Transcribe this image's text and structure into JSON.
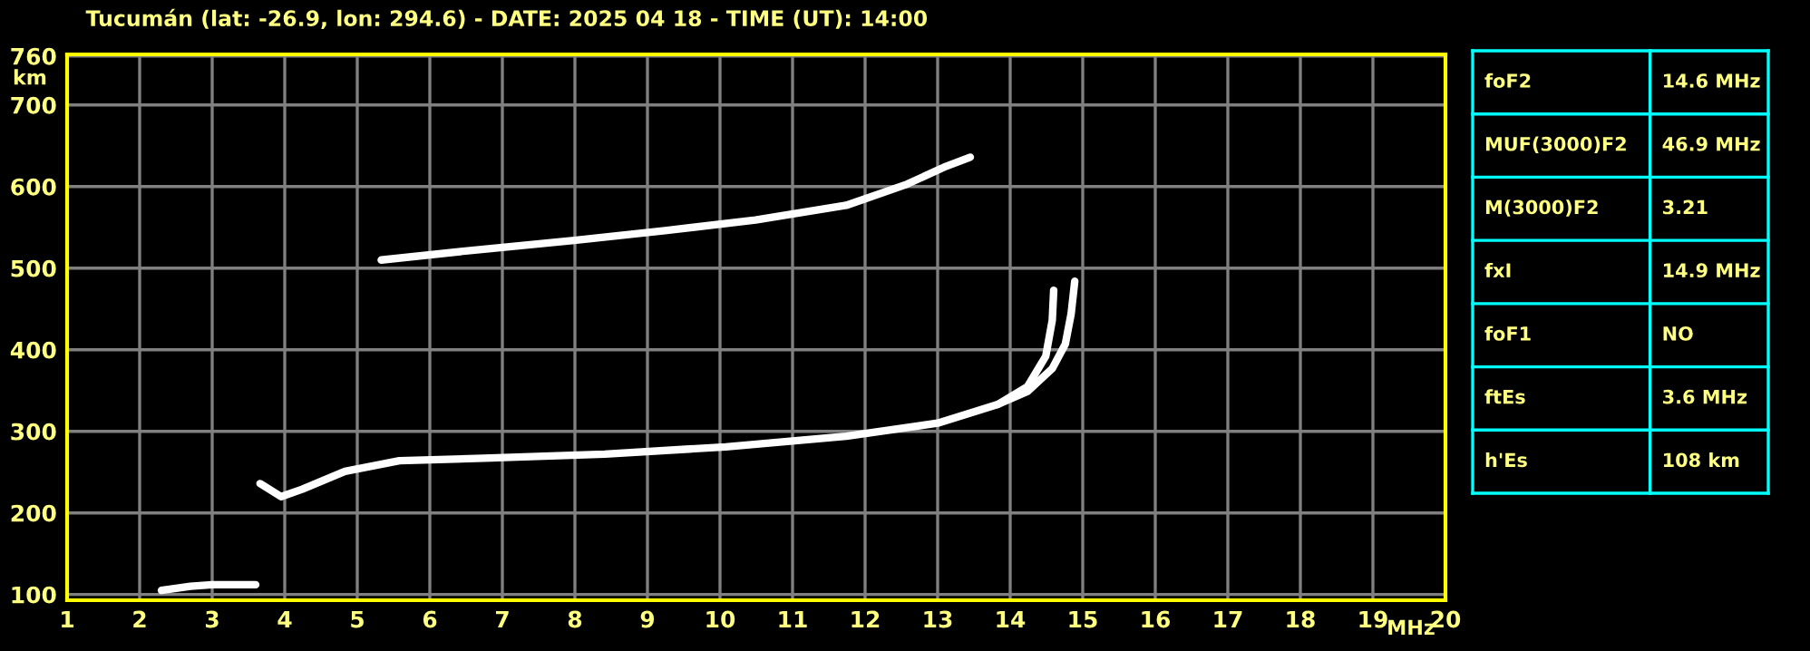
{
  "chart_data": {
    "type": "line",
    "title": "Tucumán (lat: -26.9, lon: 294.6) - DATE: 2025 04 18 - TIME (UT): 14:00",
    "xlabel": "MHz",
    "ylabel": "km",
    "series": [
      {
        "color": "#ffffff",
        "x": [
          3.66,
          3.95,
          4.24,
          4.83,
          5.58,
          6.74,
          8.41,
          10.08,
          11.74,
          13.0,
          13.83,
          14.24,
          14.49,
          14.58,
          14.6
        ],
        "values": [
          236,
          220,
          229,
          251,
          264,
          267,
          272,
          281,
          294,
          310,
          333,
          355,
          392,
          436,
          473
        ]
      },
      {
        "color": "#ffffff",
        "x": [
          13.83,
          14.24,
          14.58,
          14.76,
          14.84,
          14.89
        ],
        "values": [
          333,
          349,
          377,
          407,
          444,
          484
        ]
      },
      {
        "color": "#ffffff",
        "x": [
          5.33,
          6.49,
          7.99,
          9.24,
          10.49,
          11.74,
          12.58,
          13.12,
          13.45
        ],
        "values": [
          510,
          521,
          534,
          546,
          559,
          577,
          603,
          625,
          636
        ]
      },
      {
        "color": "#ffffff",
        "x": [
          2.3,
          2.7,
          3.0,
          3.6
        ],
        "values": [
          105,
          110,
          112,
          112
        ]
      }
    ],
    "xlim": [
      1,
      20
    ],
    "ylim": [
      93,
      762
    ],
    "xticks": [
      1,
      2,
      3,
      4,
      5,
      6,
      7,
      8,
      9,
      10,
      11,
      12,
      13,
      14,
      15,
      16,
      17,
      18,
      19,
      20
    ],
    "yticks": [
      100,
      200,
      300,
      400,
      500,
      600,
      700,
      760
    ],
    "grid": true,
    "legend": false,
    "marker": "none",
    "line_style": "solid",
    "annotations": [
      "foF2",
      "14.6 MHz",
      "MUF(3000)F2",
      "46.9 MHz",
      "M(3000)F2",
      "3.21",
      "fxI",
      "14.9 MHz",
      "foF1",
      "NO",
      "ftEs",
      "3.6 MHz",
      "h'Es",
      "108 km"
    ]
  }
}
